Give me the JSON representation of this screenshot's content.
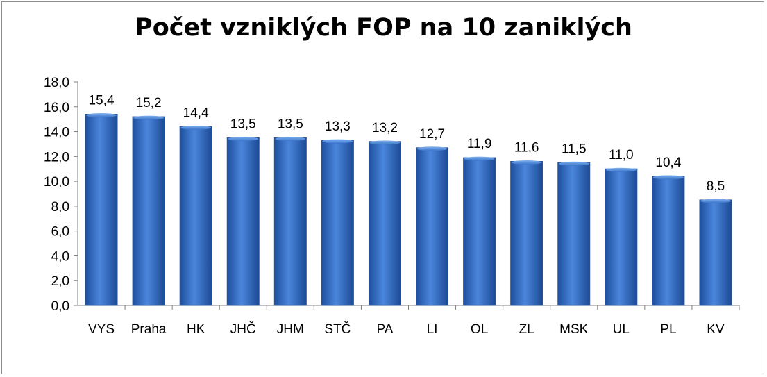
{
  "chart_data": {
    "type": "bar",
    "title": "Počet vzniklých FOP na 10 zaniklých",
    "categories": [
      "VYS",
      "Praha",
      "HK",
      "JHČ",
      "JHM",
      "STČ",
      "PA",
      "LI",
      "OL",
      "ZL",
      "MSK",
      "UL",
      "PL",
      "KV"
    ],
    "values": [
      15.4,
      15.2,
      14.4,
      13.5,
      13.5,
      13.3,
      13.2,
      12.7,
      11.9,
      11.6,
      11.5,
      11.0,
      10.4,
      8.5
    ],
    "data_labels": [
      "15,4",
      "15,2",
      "14,4",
      "13,5",
      "13,5",
      "13,3",
      "13,2",
      "12,7",
      "11,9",
      "11,6",
      "11,5",
      "11,0",
      "10,4",
      "8,5"
    ],
    "ylim": [
      0,
      18
    ],
    "y_ticks": [
      "0,0",
      "2,0",
      "4,0",
      "6,0",
      "8,0",
      "10,0",
      "12,0",
      "14,0",
      "16,0",
      "18,0"
    ],
    "xlabel": "",
    "ylabel": "",
    "grid": false,
    "legend": "none",
    "bar_color": "#3a74c9"
  }
}
